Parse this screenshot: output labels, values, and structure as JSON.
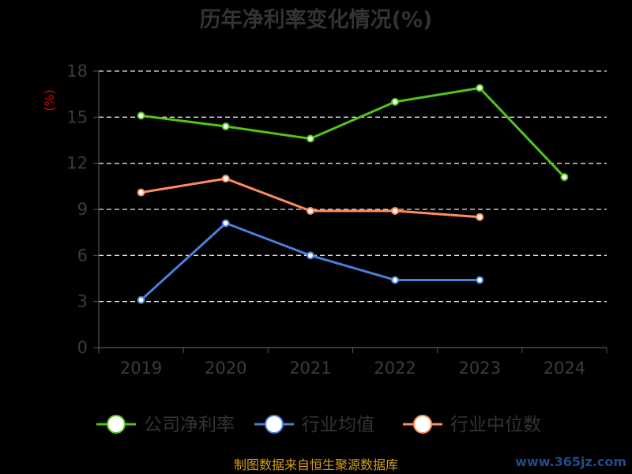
{
  "chart_data": {
    "type": "line",
    "title": "历年净利率变化情况(%)",
    "ylabel": "(%)",
    "xlabel": "",
    "categories": [
      "2019",
      "2020",
      "2021",
      "2022",
      "2023",
      "2024"
    ],
    "ylim": [
      0,
      18
    ],
    "yticks": [
      0,
      3,
      6,
      9,
      12,
      15,
      18
    ],
    "grid": true,
    "legend_position": "bottom",
    "series": [
      {
        "name": "公司净利率",
        "color": "#52c41a",
        "values": [
          15.1,
          14.4,
          13.6,
          16.0,
          16.9,
          11.1
        ]
      },
      {
        "name": "行业均值",
        "color": "#4a7fdb",
        "values": [
          3.1,
          8.1,
          6.0,
          4.4,
          4.4,
          null
        ]
      },
      {
        "name": "行业中位数",
        "color": "#ff8c5a",
        "values": [
          10.1,
          11.0,
          8.9,
          8.9,
          8.5,
          null
        ]
      }
    ]
  },
  "footer": {
    "source": "制图数据来自恒生聚源数据库",
    "watermark": "www.365jz.com"
  }
}
